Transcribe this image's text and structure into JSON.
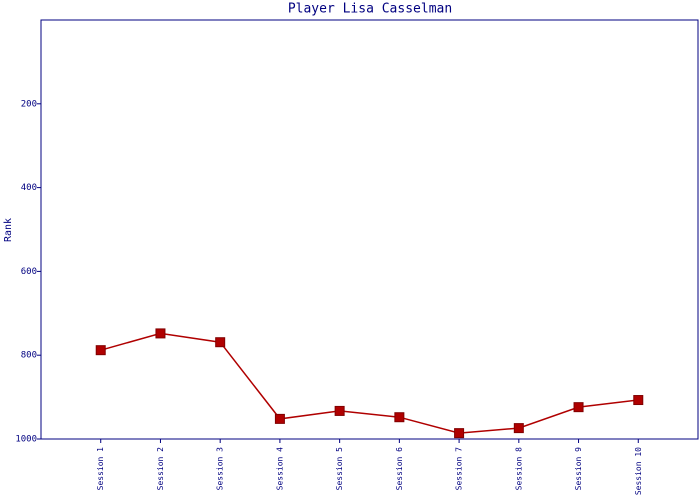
{
  "chart_data": {
    "type": "line",
    "title": "Player Lisa Casselman",
    "y_label": "Rank",
    "categories": [
      "Session 1",
      "Session 2",
      "Session 3",
      "Session 4",
      "Session 5",
      "Session 6",
      "Session 7",
      "Session 8",
      "Session 9",
      "Session 10"
    ],
    "series": [
      {
        "color": "#b00000",
        "values": [
          788,
          748,
          769,
          952,
          933,
          948,
          986,
          974,
          924,
          907
        ]
      }
    ],
    "ylim": [
      0,
      1000
    ],
    "y_reversed": true,
    "yticks": [
      200,
      400,
      600,
      800,
      1000
    ],
    "grid": false
  }
}
